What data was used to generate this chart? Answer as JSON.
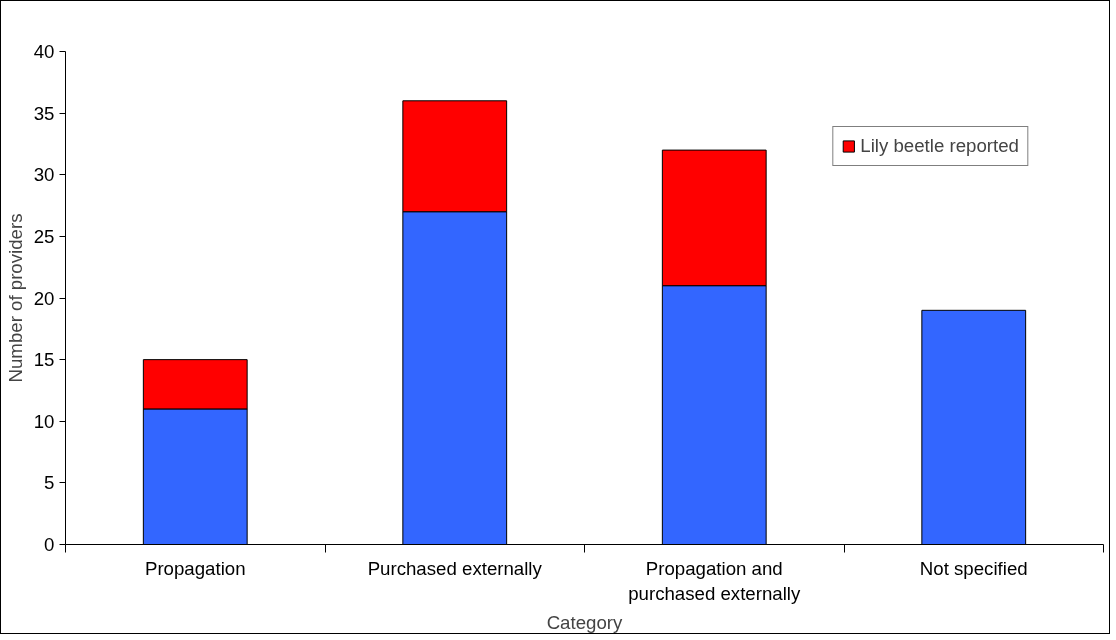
{
  "chart_data": {
    "type": "bar",
    "stacked": true,
    "xlabel": "Category",
    "ylabel": "Number of providers",
    "categories": [
      "Propagation",
      "Purchased externally",
      "Propagation and\npurchased externally",
      "Not specified"
    ],
    "series": [
      {
        "color": "#3366ff",
        "values": [
          11,
          27,
          21,
          19
        ]
      },
      {
        "name": "Lily beetle reported",
        "color": "#ff0000",
        "values": [
          4,
          9,
          11,
          null
        ]
      }
    ],
    "ylim": [
      0,
      40
    ],
    "yticks": [
      0,
      5,
      10,
      15,
      20,
      25,
      30,
      35,
      40
    ],
    "grid": false,
    "legend": "top right"
  }
}
